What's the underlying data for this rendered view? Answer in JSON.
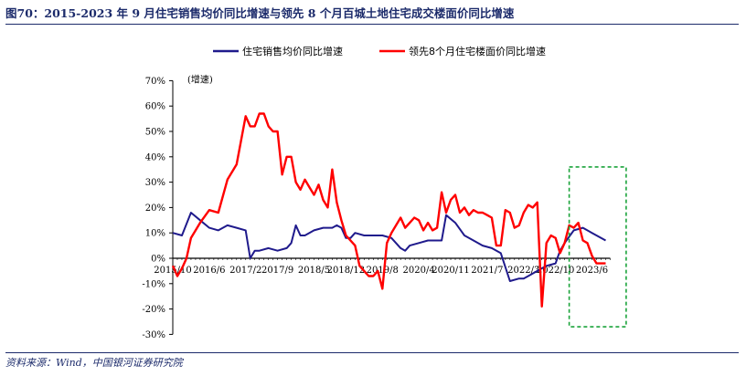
{
  "header": {
    "title": "图70：2015-2023 年 9 月住宅销售均价同比增速与领先 8 个月百城土地住宅成交楼面价同比增速"
  },
  "footer": {
    "source": "资料来源：Wind，中国银河证券研究院"
  },
  "colors": {
    "series1": "#1f1a8c",
    "series2": "#ff0000",
    "highlight": "#1aa33a",
    "text": "#1c2b6b"
  },
  "chart_data": {
    "type": "line",
    "ylabel": "(增速)",
    "ylim": [
      -30,
      70
    ],
    "yticks": [
      -30,
      -20,
      -10,
      0,
      10,
      20,
      30,
      40,
      50,
      60,
      70
    ],
    "ytick_labels": [
      "-30%",
      "-20%",
      "-10%",
      "0%",
      "10%",
      "20%",
      "30%",
      "40%",
      "50%",
      "60%",
      "70%"
    ],
    "x_start": "2015/10",
    "x_end": "2023/9",
    "xtick_labels": [
      "2015/10",
      "2016/6",
      "2017/2",
      "2017/9",
      "2018/5",
      "2018/12",
      "2019/8",
      "2020/4",
      "2020/11",
      "2021/7",
      "2022/3",
      "2022/10",
      "2023/6"
    ],
    "xtick_months": [
      0,
      8,
      16,
      23,
      31,
      38,
      46,
      54,
      61,
      69,
      77,
      84,
      92
    ],
    "legend_position": "top",
    "series": [
      {
        "name": "住宅销售均价同比增速",
        "color": "#1f1a8c",
        "months": [
          0,
          2,
          4,
          6,
          8,
          10,
          12,
          14,
          16,
          17,
          18,
          19,
          21,
          23,
          25,
          26,
          27,
          28,
          29,
          31,
          33,
          35,
          36,
          37,
          38,
          39,
          40,
          42,
          44,
          46,
          48,
          50,
          51,
          52,
          54,
          56,
          58,
          59,
          60,
          62,
          64,
          66,
          68,
          70,
          72,
          74,
          76,
          77,
          78,
          80,
          82,
          84,
          85,
          86,
          88,
          90,
          92,
          94,
          95
        ],
        "values": [
          10,
          9,
          18,
          15,
          12,
          11,
          13,
          12,
          11,
          0,
          3,
          3,
          4,
          3,
          4,
          6,
          13,
          9,
          9,
          11,
          12,
          12,
          13,
          12,
          8,
          8,
          10,
          9,
          9,
          9,
          8,
          4,
          3,
          5,
          6,
          7,
          7,
          7,
          17,
          14,
          9,
          7,
          5,
          4,
          2,
          -9,
          -8,
          -8,
          -7,
          -5,
          -3,
          -2,
          3,
          6,
          11,
          12,
          10,
          8,
          7
        ]
      },
      {
        "name": "领先8个月住宅楼面价同比增速",
        "color": "#ff0000",
        "months": [
          0,
          1,
          2,
          3,
          4,
          6,
          8,
          10,
          12,
          14,
          16,
          17,
          18,
          19,
          20,
          21,
          22,
          23,
          24,
          25,
          26,
          27,
          28,
          29,
          30,
          31,
          32,
          33,
          34,
          35,
          36,
          37,
          38,
          40,
          41,
          42,
          43,
          44,
          45,
          46,
          47,
          48,
          50,
          51,
          52,
          53,
          54,
          55,
          56,
          57,
          58,
          59,
          60,
          61,
          62,
          63,
          64,
          65,
          66,
          67,
          68,
          69,
          70,
          71,
          72,
          73,
          74,
          75,
          76,
          77,
          78,
          79,
          80,
          81,
          82,
          83,
          84,
          85,
          86,
          87,
          88,
          89,
          90,
          91,
          92,
          93,
          94,
          95
        ],
        "values": [
          -3,
          -7,
          -4,
          0,
          8,
          14,
          19,
          18,
          31,
          37,
          56,
          52,
          52,
          57,
          57,
          52,
          50,
          50,
          33,
          40,
          40,
          30,
          27,
          31,
          28,
          25,
          29,
          23,
          20,
          35,
          22,
          15,
          9,
          5,
          -3,
          -5,
          -7,
          -7,
          -5,
          -12,
          6,
          10,
          16,
          12,
          14,
          16,
          15,
          11,
          14,
          11,
          12,
          26,
          18,
          23,
          25,
          18,
          20,
          17,
          19,
          18,
          18,
          17,
          16,
          5,
          5,
          19,
          18,
          12,
          13,
          18,
          21,
          20,
          22,
          -19,
          6,
          9,
          8,
          2,
          6,
          13,
          12,
          14,
          7,
          6,
          1,
          -2,
          -2,
          -2
        ]
      }
    ],
    "annotation": {
      "type": "dashed-box",
      "x_range": [
        "2023/1",
        "2023/9"
      ],
      "y_range": [
        -27,
        36
      ],
      "color": "#1aa33a"
    }
  }
}
